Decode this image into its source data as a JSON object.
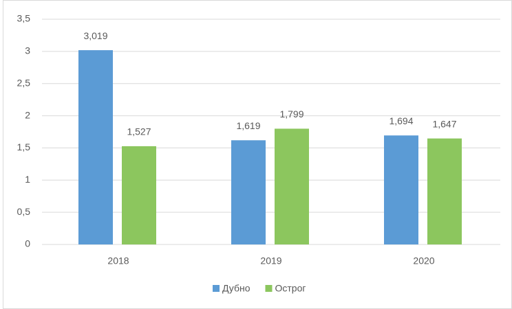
{
  "chart_data": {
    "type": "bar",
    "categories": [
      "2018",
      "2019",
      "2020"
    ],
    "series": [
      {
        "name": "Дубно",
        "color": "#5b9bd5",
        "values": [
          3.019,
          1.619,
          1.694
        ],
        "value_labels": [
          "3,019",
          "1,619",
          "1,694"
        ]
      },
      {
        "name": "Острог",
        "color": "#8cc65e",
        "values": [
          1.527,
          1.799,
          1.647
        ],
        "value_labels": [
          "1,527",
          "1,799",
          "1,647"
        ]
      }
    ],
    "ylim": [
      0,
      3.5
    ],
    "yticks": [
      0,
      {
        "value": 0.5,
        "label": "0,5"
      },
      1,
      {
        "value": 1.5,
        "label": "1,5"
      },
      2,
      {
        "value": 2.5,
        "label": "2,5"
      },
      3,
      {
        "value": 3.5,
        "label": "3,5"
      }
    ],
    "grid": true,
    "legend": "bottom"
  }
}
